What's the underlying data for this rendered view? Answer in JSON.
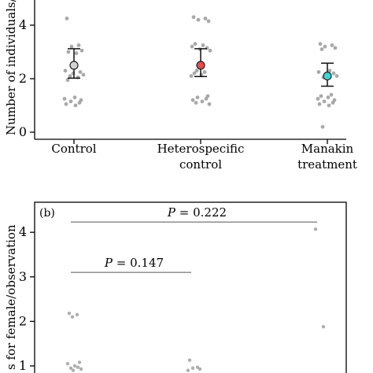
{
  "chart_data": [
    {
      "type": "scatter",
      "panel": "",
      "ylabel": "Number of individuals/",
      "ylim": [
        0,
        5
      ],
      "yticks": [
        0,
        2,
        4
      ],
      "categories": [
        {
          "lines": [
            "Control"
          ]
        },
        {
          "lines": [
            "Heterospecific",
            "control"
          ]
        },
        {
          "lines": [
            "Manakin",
            "treatment"
          ]
        }
      ],
      "means": [
        {
          "mean": 2.5,
          "low": 2.02,
          "high": 3.12,
          "color": "#d3d3d3"
        },
        {
          "mean": 2.5,
          "low": 2.08,
          "high": 3.12,
          "color": "#e64c4c"
        },
        {
          "mean": 2.1,
          "low": 1.72,
          "high": 2.58,
          "color": "#3fd4d4"
        }
      ],
      "points": [
        [
          4.25,
          3.25,
          3.2,
          3.05,
          3.0,
          2.95,
          2.3,
          2.25,
          2.2,
          2.15,
          2.1,
          2.05,
          1.95,
          1.3,
          1.25,
          1.2,
          1.15,
          1.1,
          1.05,
          1.0
        ],
        [
          4.3,
          4.25,
          4.2,
          4.15,
          3.3,
          3.25,
          3.2,
          3.15,
          3.1,
          3.05,
          2.3,
          2.25,
          2.2,
          2.15,
          2.1,
          1.35,
          1.3,
          1.25,
          1.2,
          1.15,
          1.1,
          1.05
        ],
        [
          3.3,
          3.25,
          3.2,
          3.15,
          3.1,
          2.3,
          2.25,
          2.2,
          2.15,
          2.1,
          2.05,
          1.4,
          1.35,
          1.3,
          1.25,
          1.2,
          1.15,
          1.1,
          1.05,
          1.0,
          0.2
        ]
      ],
      "point_color": "#8c8c8c"
    },
    {
      "type": "scatter",
      "panel": "(b)",
      "ylabel": "s for female/observation",
      "ylim": [
        0.85,
        4.7
      ],
      "yticks": [
        1,
        2,
        3,
        4
      ],
      "comparisons": [
        {
          "label_prefix": "P",
          "label_value": " = 0.222",
          "from": 0,
          "to": 2,
          "y": 4.23
        },
        {
          "label_prefix": "P",
          "label_value": " = 0.147",
          "from": 0,
          "to": 1,
          "y": 3.1
        }
      ],
      "points": [
        [
          2.18,
          2.15,
          2.1,
          1.08,
          1.05,
          1.0,
          0.97,
          0.95,
          0.93,
          0.9
        ],
        [
          1.13,
          0.97,
          0.95,
          0.93,
          0.9
        ],
        [
          4.07,
          1.88
        ]
      ],
      "point_color": "#9a9a9a"
    }
  ]
}
